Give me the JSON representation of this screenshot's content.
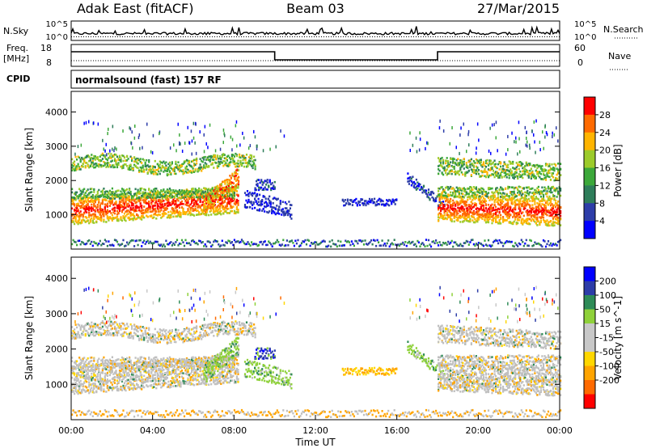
{
  "header": {
    "station": "Adak East (fitACF)",
    "beam": "Beam 03",
    "date": "27/Mar/2015"
  },
  "noise_panel": {
    "left_label": "N.Sky",
    "left_tick_top": "10^5",
    "left_tick_bottom": "10^0",
    "right_label": "N.Search",
    "right_tick_top": "10^5",
    "right_tick_bottom": "10^0"
  },
  "freq_panel": {
    "left_label_1": "Freq.",
    "left_label_2": "[MHz]",
    "left_tick_top": "18",
    "left_tick_bottom": "8",
    "right_label": "Nave",
    "right_tick_top": "60",
    "right_tick_bottom": "0"
  },
  "cpid_panel": {
    "label": "CPID",
    "program": "normalsound (fast) 157 RF"
  },
  "colors": {
    "power": [
      "#0000ff",
      "#2d3da8",
      "#2e7d5a",
      "#3ca83a",
      "#9ccb2b",
      "#ffb400",
      "#ff6a00",
      "#ff0000"
    ],
    "velocity": [
      "#ff0000",
      "#ff6a00",
      "#ffa400",
      "#ffd700",
      "#c8c8c8",
      "#c8c8c8",
      "#8fd13a",
      "#2e8b57",
      "#2d3da8",
      "#0000ff"
    ],
    "ground": "#c0c0c0"
  },
  "chart_data": [
    {
      "type": "heatmap",
      "name": "power",
      "ylabel": "Slant Range [km]",
      "xlim": [
        "00:00",
        "00:00"
      ],
      "ylim": [
        0,
        4600
      ],
      "y_ticks": [
        "1000",
        "2000",
        "3000",
        "4000"
      ],
      "colorbar": {
        "label": "Power [dB]",
        "ticks": [
          "4",
          "8",
          "12",
          "16",
          "20",
          "24",
          "28"
        ]
      }
    },
    {
      "type": "heatmap",
      "name": "velocity",
      "ylabel": "Slant Range [km]",
      "xlabel": "Time UT",
      "xlim": [
        "00:00",
        "00:00"
      ],
      "ylim": [
        0,
        4600
      ],
      "x_ticks": [
        "00:00",
        "04:00",
        "08:00",
        "12:00",
        "16:00",
        "20:00",
        "00:00"
      ],
      "y_ticks": [
        "1000",
        "2000",
        "3000",
        "4000"
      ],
      "colorbar": {
        "label": "Velocity [m s^-1]",
        "ticks": [
          "200",
          "100",
          "50",
          "15",
          "-15",
          "-50",
          "-100",
          "-200"
        ]
      }
    }
  ]
}
